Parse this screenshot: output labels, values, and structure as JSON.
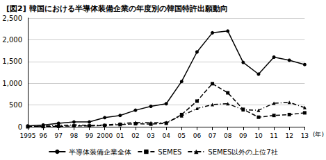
{
  "chart_data": {
    "type": "line",
    "title": "[図2] 韓国における半導体装備企業の年度別の韓国特許出願動向",
    "x_label": "(年)",
    "categories": [
      "1995",
      "96",
      "97",
      "98",
      "99",
      "2000",
      "01",
      "02",
      "03",
      "04",
      "05",
      "06",
      "07",
      "08",
      "09",
      "10",
      "11",
      "12",
      "13"
    ],
    "series": [
      {
        "name": "半導体装備企業全体",
        "color": "#000000",
        "marker": "circle",
        "line_style": "solid",
        "values": [
          20,
          40,
          80,
          110,
          110,
          210,
          260,
          380,
          470,
          530,
          1040,
          1720,
          2160,
          2200,
          1480,
          1210,
          1600,
          1530,
          1430
        ]
      },
      {
        "name": "SEMES",
        "color": "#000000",
        "marker": "rect",
        "line_style": "dashed",
        "values": [
          0,
          5,
          10,
          20,
          20,
          30,
          50,
          70,
          60,
          80,
          280,
          590,
          990,
          780,
          400,
          220,
          260,
          280,
          320
        ]
      },
      {
        "name": "SEMES以外の上位7社",
        "color": "#000000",
        "marker": "triangle",
        "line_style": "dashdot",
        "values": [
          10,
          15,
          30,
          40,
          30,
          40,
          70,
          100,
          90,
          100,
          250,
          420,
          510,
          530,
          390,
          380,
          540,
          560,
          440
        ]
      }
    ],
    "ylim": [
      0,
      2500
    ],
    "yticks": [
      0,
      500,
      1000,
      1500,
      2000,
      2500
    ],
    "grid": true,
    "legend": "bottom"
  }
}
